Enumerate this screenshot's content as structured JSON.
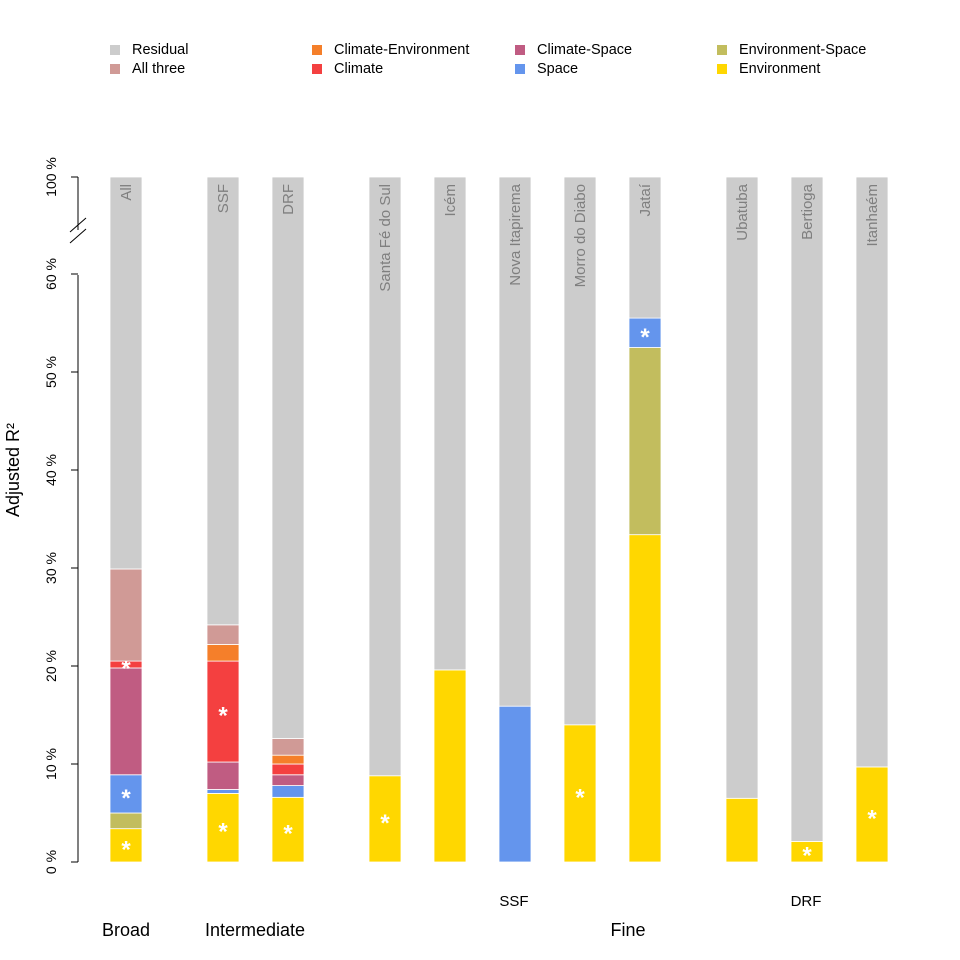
{
  "chart_data": {
    "type": "bar",
    "stacked": true,
    "ylabel": "Adjusted R²",
    "ylim": [
      0,
      100
    ],
    "axis_break": [
      65,
      100
    ],
    "y_ticks": [
      {
        "value": 0,
        "label": "0 %"
      },
      {
        "value": 10,
        "label": "10 %"
      },
      {
        "value": 20,
        "label": "20 %"
      },
      {
        "value": 30,
        "label": "30 %"
      },
      {
        "value": 40,
        "label": "40 %"
      },
      {
        "value": 50,
        "label": "50 %"
      },
      {
        "value": 60,
        "label": "60 %"
      },
      {
        "value": 100,
        "label": "100 %"
      }
    ],
    "legend": [
      {
        "name": "Residual",
        "color": "#CCCCCC"
      },
      {
        "name": "Climate-Environment",
        "color": "#F57F2A"
      },
      {
        "name": "Climate-Space",
        "color": "#C05C82"
      },
      {
        "name": "Environment-Space",
        "color": "#C2BD5E"
      },
      {
        "name": "All three",
        "color": "#D09A96"
      },
      {
        "name": "Climate",
        "color": "#F44040"
      },
      {
        "name": "Space",
        "color": "#6495ED"
      },
      {
        "name": "Environment",
        "color": "#FFD700"
      }
    ],
    "colors": {
      "Residual": "#CCCCCC",
      "All three": "#D09A96",
      "Climate-Environment": "#F57F2A",
      "Climate": "#F44040",
      "Climate-Space": "#C05C82",
      "Space": "#6495ED",
      "Environment-Space": "#C2BD5E",
      "Environment": "#FFD700"
    },
    "bars": [
      {
        "label": "All",
        "segments": [
          {
            "name": "Environment",
            "value": 3.4,
            "star": true
          },
          {
            "name": "Environment-Space",
            "value": 1.6
          },
          {
            "name": "Space",
            "value": 3.9,
            "star": true
          },
          {
            "name": "Climate-Space",
            "value": 10.9
          },
          {
            "name": "Climate",
            "value": 0.7,
            "star": true
          },
          {
            "name": "All three",
            "value": 9.4
          },
          {
            "name": "Residual",
            "value": 70.1
          }
        ]
      },
      {
        "label": "SSF",
        "segments": [
          {
            "name": "Environment",
            "value": 7.0,
            "star": true
          },
          {
            "name": "Space",
            "value": 0.4
          },
          {
            "name": "Climate-Space",
            "value": 2.8
          },
          {
            "name": "Climate",
            "value": 10.3,
            "star": true
          },
          {
            "name": "Climate-Environment",
            "value": 1.7
          },
          {
            "name": "All three",
            "value": 2.0
          },
          {
            "name": "Residual",
            "value": 75.8
          }
        ]
      },
      {
        "label": "DRF",
        "segments": [
          {
            "name": "Environment",
            "value": 6.6,
            "star": true
          },
          {
            "name": "Space",
            "value": 1.2
          },
          {
            "name": "Climate-Space",
            "value": 1.1
          },
          {
            "name": "Climate",
            "value": 1.1
          },
          {
            "name": "Climate-Environment",
            "value": 0.9
          },
          {
            "name": "All three",
            "value": 1.7
          },
          {
            "name": "Residual",
            "value": 87.4
          }
        ]
      },
      {
        "label": "Santa Fé do Sul",
        "segments": [
          {
            "name": "Environment",
            "value": 8.8,
            "star": true
          },
          {
            "name": "Residual",
            "value": 91.2
          }
        ]
      },
      {
        "label": "Icém",
        "segments": [
          {
            "name": "Environment",
            "value": 19.6
          },
          {
            "name": "Residual",
            "value": 80.4
          }
        ]
      },
      {
        "label": "Nova Itapirema",
        "segments": [
          {
            "name": "Space",
            "value": 15.9
          },
          {
            "name": "Residual",
            "value": 84.1
          }
        ]
      },
      {
        "label": "Morro do Diabo",
        "segments": [
          {
            "name": "Environment",
            "value": 14.0,
            "star": true
          },
          {
            "name": "Residual",
            "value": 86.0
          }
        ]
      },
      {
        "label": "Jataí",
        "segments": [
          {
            "name": "Environment",
            "value": 33.4
          },
          {
            "name": "Environment-Space",
            "value": 19.1
          },
          {
            "name": "Space",
            "value": 3.0,
            "star": true
          },
          {
            "name": "Residual",
            "value": 44.5
          }
        ]
      },
      {
        "label": "Ubatuba",
        "segments": [
          {
            "name": "Environment",
            "value": 6.5
          },
          {
            "name": "Residual",
            "value": 93.5
          }
        ]
      },
      {
        "label": "Bertioga",
        "segments": [
          {
            "name": "Environment",
            "value": 2.1,
            "star": true
          },
          {
            "name": "Residual",
            "value": 97.9
          }
        ]
      },
      {
        "label": "Itanhaém",
        "segments": [
          {
            "name": "Environment",
            "value": 9.7,
            "star": true
          },
          {
            "name": "Residual",
            "value": 90.3
          }
        ]
      }
    ],
    "subgroup_labels": [
      "SSF",
      "DRF"
    ],
    "group_labels": [
      "Broad",
      "Intermediate",
      "Fine"
    ],
    "star_symbol": "*"
  }
}
